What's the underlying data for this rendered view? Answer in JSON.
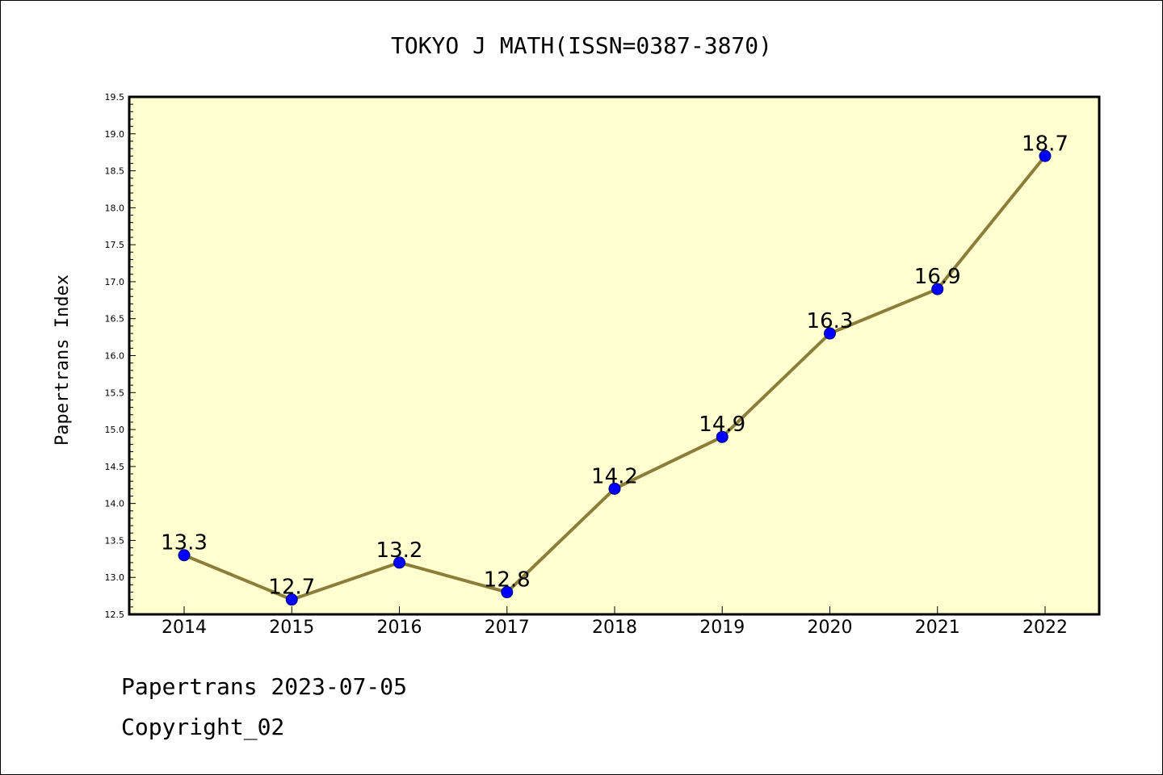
{
  "chart_data": {
    "type": "line",
    "title": "TOKYO J MATH(ISSN=0387-3870)",
    "ylabel": "Papertrans Index",
    "xlabel": "",
    "categories": [
      "2014",
      "2015",
      "2016",
      "2017",
      "2018",
      "2019",
      "2020",
      "2021",
      "2022"
    ],
    "series": [
      {
        "values": [
          13.3,
          12.7,
          13.2,
          12.8,
          14.2,
          14.9,
          16.3,
          16.9,
          18.7
        ],
        "labels": [
          "13.3",
          "12.7",
          "13.2",
          "12.8",
          "14.2",
          "14.9",
          "16.3",
          "16.9",
          "18.7"
        ]
      }
    ],
    "ylim": [
      12.5,
      19.5
    ],
    "yticks": [
      "12.5",
      "13.0",
      "13.5",
      "14.0",
      "14.5",
      "15.0",
      "15.5",
      "16.0",
      "16.5",
      "17.0",
      "17.5",
      "18.0",
      "18.5",
      "19.0",
      "19.5"
    ],
    "grid": false,
    "colors": {
      "plot_bg": "#ffffd0",
      "line": "#8b7d3a",
      "marker": "#0000ff"
    }
  },
  "footer": {
    "line1": "Papertrans 2023-07-05",
    "line2": "Copyright_02"
  }
}
